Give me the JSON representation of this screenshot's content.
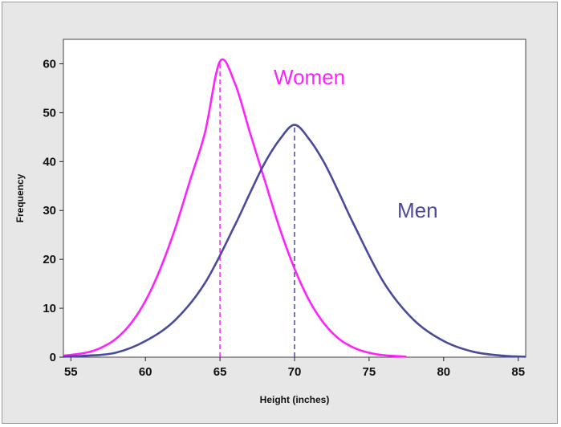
{
  "chart_data": {
    "type": "line",
    "title": "",
    "xlabel": "Height (inches)",
    "ylabel": "Frequency",
    "xlim": [
      54.5,
      85.5
    ],
    "ylim": [
      0,
      65
    ],
    "xticks": [
      55,
      60,
      65,
      70,
      75,
      80,
      85
    ],
    "yticks": [
      0,
      10,
      20,
      30,
      40,
      50,
      60
    ],
    "grid": false,
    "legend": "none",
    "series": [
      {
        "name": "Women",
        "color": "#ff22ff",
        "mean": 65,
        "x": [
          54.5,
          56,
          57,
          58,
          59,
          60,
          61,
          62,
          63,
          64,
          65,
          66,
          67,
          68,
          69,
          70,
          71,
          72,
          73,
          74,
          75,
          76,
          77.5
        ],
        "y": [
          0.3,
          0.9,
          1.9,
          3.7,
          6.8,
          11.5,
          18.1,
          26.4,
          36.2,
          46.0,
          60.5,
          56.0,
          46.0,
          36.2,
          26.4,
          18.1,
          11.5,
          6.8,
          3.7,
          1.9,
          0.9,
          0.4,
          0.1
        ]
      },
      {
        "name": "Men",
        "color": "#4a4a9c",
        "mean": 70,
        "x": [
          54.5,
          56,
          58,
          60,
          62,
          64,
          66,
          67,
          68,
          69,
          70,
          71,
          72,
          73,
          74,
          76,
          78,
          80,
          82,
          84,
          85.5
        ],
        "y": [
          0.1,
          0.3,
          0.9,
          3.3,
          7.6,
          15.2,
          27.0,
          33.5,
          39.7,
          44.5,
          47.5,
          44.5,
          39.7,
          33.5,
          27.0,
          15.2,
          7.6,
          3.3,
          1.1,
          0.3,
          0.1
        ]
      }
    ]
  }
}
